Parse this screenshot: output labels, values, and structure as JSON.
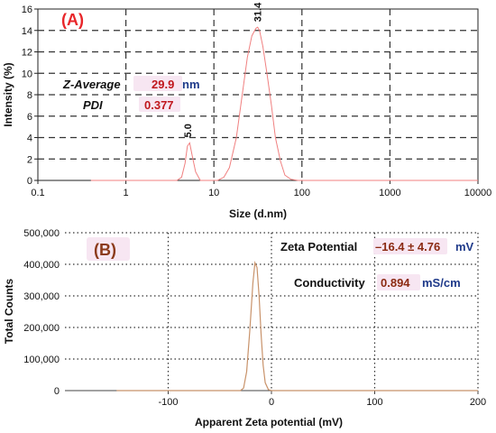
{
  "chart_data": [
    {
      "type": "line",
      "panel_label": "(A)",
      "xlabel": "Size (d.nm)",
      "ylabel": "Intensity (%)",
      "xscale": "log",
      "xlim": [
        0.1,
        10000
      ],
      "ylim": [
        0,
        16
      ],
      "x_ticks": [
        0.1,
        1,
        10,
        100,
        1000,
        10000
      ],
      "x_tick_labels": [
        "0.1",
        "1",
        "10",
        "100",
        "1000",
        "10000"
      ],
      "y_ticks": [
        0,
        2,
        4,
        6,
        8,
        10,
        12,
        14,
        16
      ],
      "y_tick_labels": [
        "0",
        "2",
        "4",
        "6",
        "8",
        "10",
        "12",
        "14",
        "16"
      ],
      "grid": "dashed",
      "line_color": "#f08080",
      "series": [
        {
          "x": [
            0.4,
            3.8,
            4.3,
            4.7,
            5.0,
            5.3,
            5.7,
            6.2,
            7.0,
            11,
            13,
            15,
            18,
            21,
            24,
            27,
            30,
            31.4,
            33,
            36,
            40,
            45,
            50,
            57,
            64,
            75,
            90,
            120,
            10000
          ],
          "y": [
            0,
            0,
            0.3,
            1.6,
            3.2,
            3.5,
            2.2,
            0.8,
            0,
            0,
            0.3,
            1.2,
            4.0,
            8.0,
            11.5,
            13.5,
            14.2,
            14.3,
            14.0,
            12.5,
            10.0,
            7.0,
            4.0,
            1.8,
            0.5,
            0.1,
            0,
            0,
            0
          ]
        }
      ],
      "peak_labels": [
        {
          "x": 5.0,
          "y": 3.5,
          "text": "5.0"
        },
        {
          "x": 31.4,
          "y": 14.3,
          "text": "31.4"
        }
      ],
      "annotations": {
        "z_average_label": "Z-Average",
        "z_average_value": "29.9",
        "z_average_unit": "nm",
        "pdi_label": "PDI",
        "pdi_value": "0.377"
      }
    },
    {
      "type": "line",
      "panel_label": "(B)",
      "xlabel": "Apparent Zeta potential (mV)",
      "ylabel": "Total Counts",
      "xlim": [
        -200,
        200
      ],
      "ylim": [
        0,
        500000
      ],
      "x_ticks": [
        -100,
        0,
        100,
        200
      ],
      "x_tick_labels": [
        "-100",
        "0",
        "100",
        "200"
      ],
      "y_ticks": [
        0,
        100000,
        200000,
        300000,
        400000,
        500000
      ],
      "y_tick_labels": [
        "0",
        "100,000",
        "200,000",
        "300,000",
        "400,000",
        "500,000"
      ],
      "grid": "dotted",
      "line_color": "#c8926a",
      "series": [
        {
          "x": [
            -150,
            -30,
            -27,
            -24,
            -21,
            -18,
            -16,
            -14,
            -12,
            -10,
            -8,
            -6,
            -3,
            0,
            200
          ],
          "y": [
            0,
            0,
            8000,
            60000,
            190000,
            340000,
            405000,
            390000,
            300000,
            180000,
            80000,
            25000,
            3000,
            0,
            0
          ]
        }
      ],
      "annotations": {
        "zeta_label": "Zeta Potential",
        "zeta_value": "–16.4 ± 4.76",
        "zeta_unit": "mV",
        "conductivity_label": "Conductivity",
        "conductivity_value": "0.894",
        "conductivity_unit": "mS/cm"
      }
    }
  ],
  "colors": {
    "panel_label": "#e8262a",
    "panel_b_label": "#8b3a1a",
    "highlight_bg": "#f7e6f2",
    "value_red": "#c0171d",
    "value_brown": "#8b2a12",
    "unit_blue": "#1f3a8a"
  }
}
